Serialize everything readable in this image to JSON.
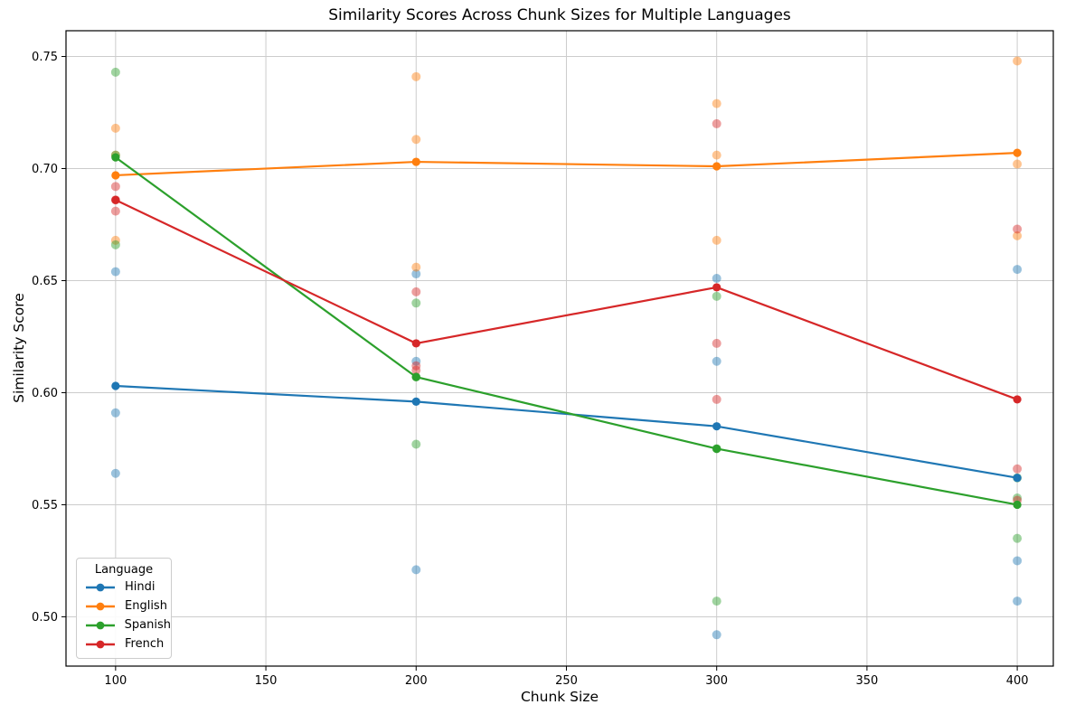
{
  "chart_data": {
    "type": "line",
    "title": "Similarity Scores Across Chunk Sizes for Multiple Languages",
    "xlabel": "Chunk Size",
    "ylabel": "Similarity Score",
    "grid": true,
    "legend": {
      "title": "Language",
      "position": "lower left"
    },
    "x": [
      100,
      200,
      300,
      400
    ],
    "xtick_labels": [
      "100",
      "150",
      "200",
      "250",
      "300",
      "350",
      "400"
    ],
    "xticks": [
      100,
      150,
      200,
      250,
      300,
      350,
      400
    ],
    "ytick_labels": [
      "0.50",
      "0.55",
      "0.60",
      "0.65",
      "0.70",
      "0.75"
    ],
    "yticks": [
      0.5,
      0.55,
      0.6,
      0.65,
      0.7,
      0.75
    ],
    "xlim": [
      83.5,
      412
    ],
    "ylim": [
      0.478,
      0.7615
    ],
    "series": [
      {
        "name": "Hindi",
        "color": "#1f77b4",
        "line_values": [
          0.603,
          0.596,
          0.585,
          0.562
        ],
        "scatter_values": [
          [
            0.654,
            0.591,
            0.564
          ],
          [
            0.653,
            0.614,
            0.521
          ],
          [
            0.651,
            0.614,
            0.492
          ],
          [
            0.655,
            0.525,
            0.507
          ]
        ]
      },
      {
        "name": "English",
        "color": "#ff7f0e",
        "line_values": [
          0.697,
          0.703,
          0.701,
          0.707
        ],
        "scatter_values": [
          [
            0.718,
            0.706,
            0.668
          ],
          [
            0.741,
            0.713,
            0.656
          ],
          [
            0.729,
            0.706,
            0.668
          ],
          [
            0.748,
            0.702,
            0.67
          ]
        ]
      },
      {
        "name": "Spanish",
        "color": "#2ca02c",
        "line_values": [
          0.705,
          0.607,
          0.575,
          0.55
        ],
        "scatter_values": [
          [
            0.743,
            0.706,
            0.666
          ],
          [
            0.64,
            0.607,
            0.577
          ],
          [
            0.643,
            0.575,
            0.507
          ],
          [
            0.562,
            0.553,
            0.535
          ]
        ]
      },
      {
        "name": "French",
        "color": "#d62728",
        "line_values": [
          0.686,
          0.622,
          0.647,
          0.597
        ],
        "scatter_values": [
          [
            0.692,
            0.686,
            0.681
          ],
          [
            0.645,
            0.612,
            0.61
          ],
          [
            0.72,
            0.622,
            0.597
          ],
          [
            0.673,
            0.566,
            0.552
          ]
        ]
      }
    ],
    "style": {
      "grid_color": "#cccccc",
      "spine_color": "#000000",
      "text_color": "#000000",
      "scatter_alpha": 0.45
    }
  }
}
